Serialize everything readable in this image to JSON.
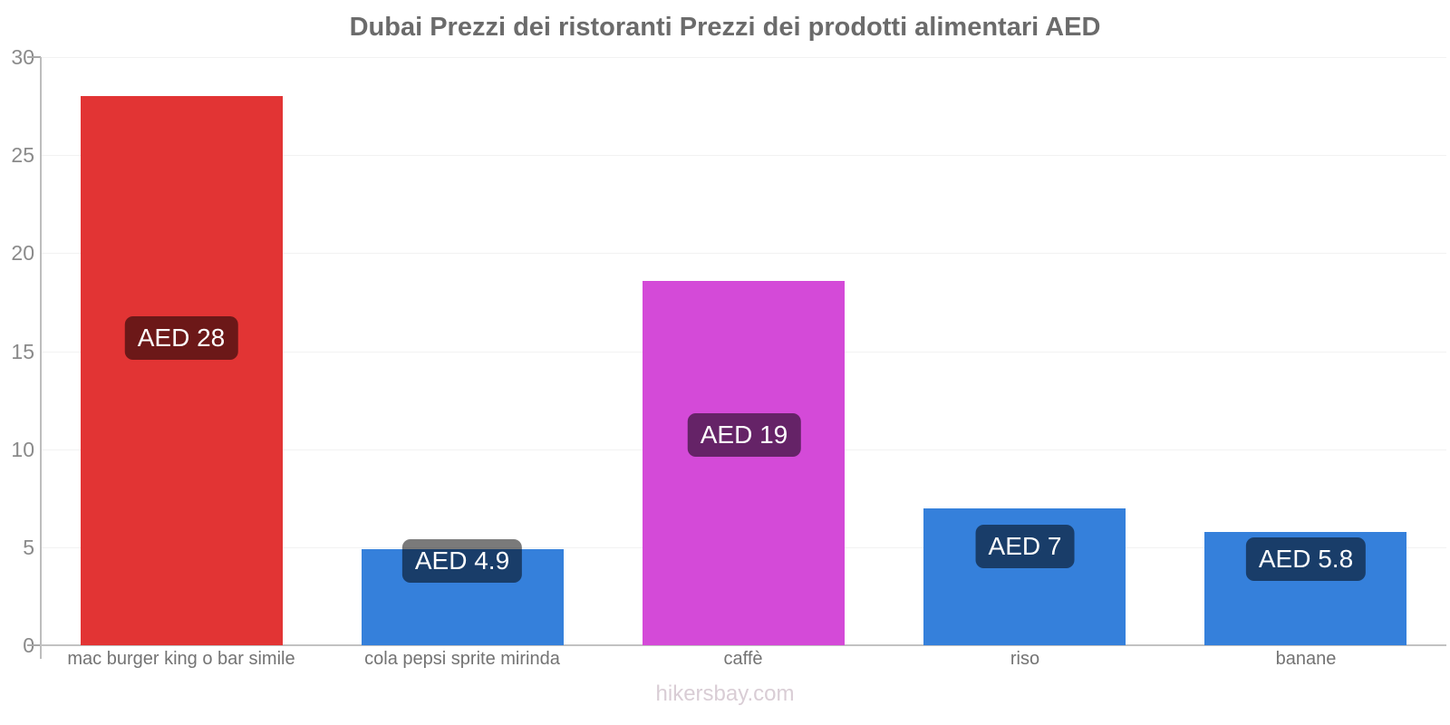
{
  "footer": "hikersbay.com",
  "colors": {
    "bar_red": "#e23434",
    "bar_blue": "#3580db",
    "bar_magenta": "#d44ad8",
    "value_label_bg": "rgba(0,0,0,0.52)",
    "value_label_text": "#ffffff",
    "title_text": "#6b6b6b",
    "axis_line": "#c2c2c2",
    "tick_text": "#8a8a8a",
    "category_text": "#737373",
    "gridline": "#f2f2f2",
    "watermark_text": "#d9cdd5"
  },
  "chart_data": {
    "type": "bar",
    "title": "Dubai Prezzi dei ristoranti Prezzi dei prodotti alimentari AED",
    "categories": [
      "mac burger king o bar simile",
      "cola pepsi sprite mirinda",
      "caffè",
      "riso",
      "banane"
    ],
    "values": [
      28,
      4.9,
      18.6,
      7,
      5.8
    ],
    "bar_labels": [
      "AED 28",
      "AED 4.9",
      "AED 19",
      "AED 7",
      "AED 5.8"
    ],
    "bar_colors": [
      "#e23434",
      "#3580db",
      "#d44ad8",
      "#3580db",
      "#3580db"
    ],
    "xlabel": "",
    "ylabel": "",
    "ylim": [
      0,
      30
    ],
    "yticks": [
      0,
      5,
      10,
      15,
      20,
      25,
      30
    ],
    "grid": "horizontal-faint",
    "legend": "none",
    "currency": "AED"
  }
}
